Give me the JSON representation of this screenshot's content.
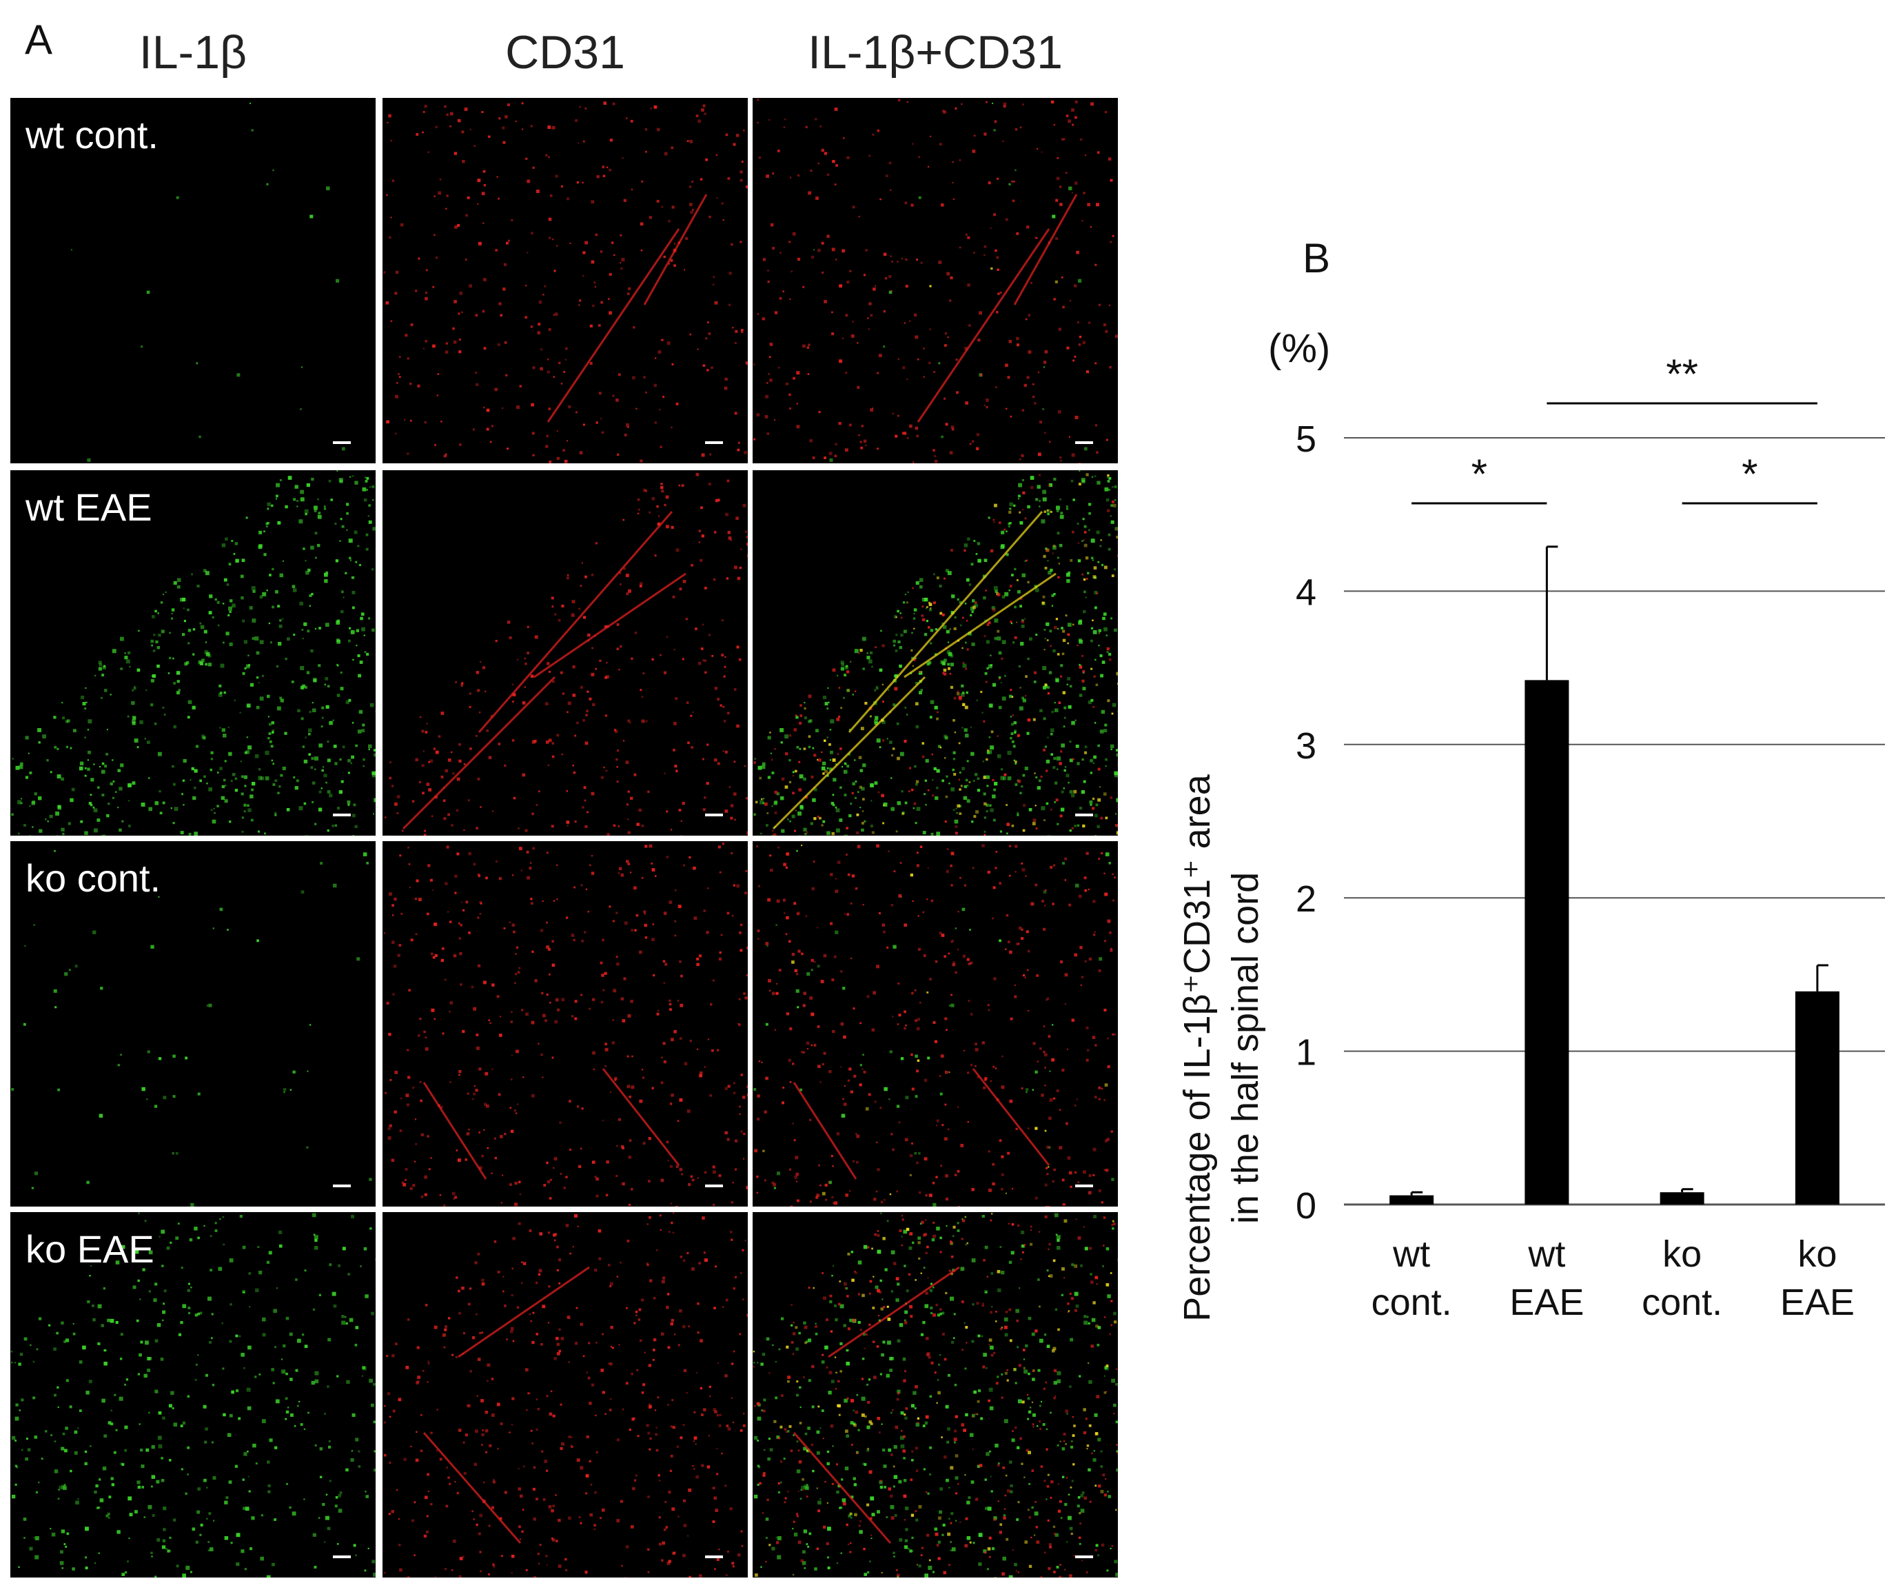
{
  "panel_a": {
    "letter": "A",
    "columns": [
      "IL-1β",
      "CD31",
      "IL-1β+CD31"
    ],
    "rows": [
      "wt cont.",
      "wt EAE",
      "ko cont.",
      "ko EAE"
    ]
  },
  "panel_b": {
    "letter": "B",
    "unit": "(%)",
    "ylabel_line1": "Percentage of IL-1β⁺CD31⁺ area",
    "ylabel_line2": "in the half spinal cord"
  },
  "chart_data": {
    "type": "bar",
    "categories": [
      [
        "wt",
        "cont."
      ],
      [
        "wt",
        "EAE"
      ],
      [
        "ko",
        "cont."
      ],
      [
        "ko",
        "EAE"
      ]
    ],
    "values": [
      0.06,
      3.42,
      0.08,
      1.39
    ],
    "errors": [
      0.02,
      0.87,
      0.02,
      0.17
    ],
    "ylim": [
      0,
      5
    ],
    "yticks": [
      0,
      1,
      2,
      3,
      4,
      5
    ],
    "grid": true,
    "bar_color": "#000000",
    "significance": [
      {
        "from": 0,
        "to": 1,
        "label": "*"
      },
      {
        "from": 2,
        "to": 3,
        "label": "*"
      },
      {
        "from": 1,
        "to": 3,
        "label": "**"
      }
    ]
  },
  "colors": {
    "green_channel": "#3ddc2a",
    "red_channel": "#e0201e",
    "merge_yellow": "#e6d21a",
    "background": "#000000"
  }
}
